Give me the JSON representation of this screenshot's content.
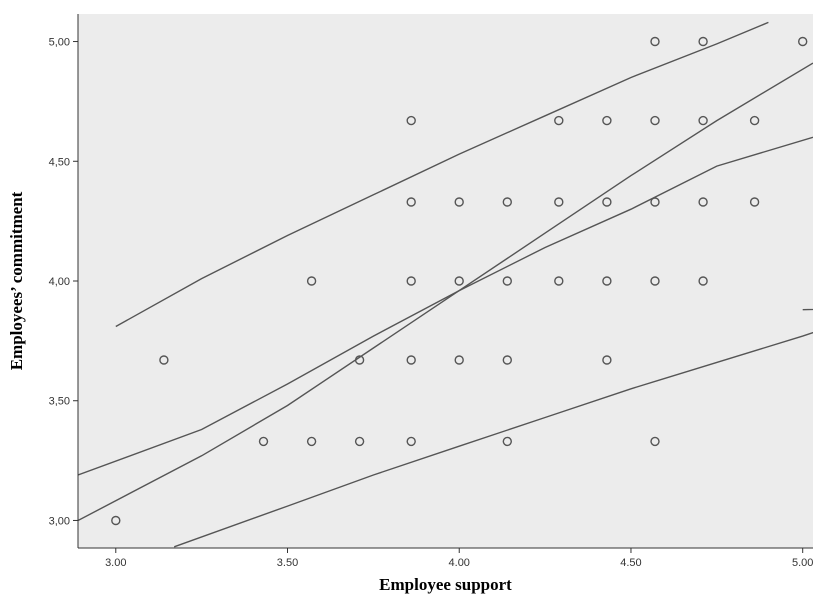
{
  "chart_data": {
    "type": "scatter",
    "xlabel": "Employee support",
    "ylabel": "Employees’ commitment",
    "xlim": [
      2.89,
      5.03
    ],
    "ylim": [
      2.885,
      5.115
    ],
    "x_ticks": [
      3.0,
      3.5,
      4.0,
      4.5,
      5.0
    ],
    "x_tick_labels": [
      "3.00",
      "3.50",
      "4.00",
      "4.50",
      "5.00"
    ],
    "y_ticks": [
      3.0,
      3.5,
      4.0,
      4.5,
      5.0
    ],
    "y_tick_labels": [
      "3,00",
      "3,50",
      "4,00",
      "4,50",
      "5,00"
    ],
    "grid": false,
    "background": "#ececec",
    "marker_color": "#555555",
    "points": [
      {
        "x": 3.0,
        "y": 3.0
      },
      {
        "x": 3.14,
        "y": 3.67
      },
      {
        "x": 3.43,
        "y": 3.33
      },
      {
        "x": 3.57,
        "y": 3.33
      },
      {
        "x": 3.57,
        "y": 4.0
      },
      {
        "x": 3.71,
        "y": 3.33
      },
      {
        "x": 3.71,
        "y": 3.67
      },
      {
        "x": 3.86,
        "y": 3.33
      },
      {
        "x": 3.86,
        "y": 3.67
      },
      {
        "x": 3.86,
        "y": 4.0
      },
      {
        "x": 3.86,
        "y": 4.33
      },
      {
        "x": 3.86,
        "y": 4.67
      },
      {
        "x": 4.0,
        "y": 3.67
      },
      {
        "x": 4.0,
        "y": 4.0
      },
      {
        "x": 4.0,
        "y": 4.33
      },
      {
        "x": 4.14,
        "y": 3.33
      },
      {
        "x": 4.14,
        "y": 3.67
      },
      {
        "x": 4.14,
        "y": 4.0
      },
      {
        "x": 4.14,
        "y": 4.33
      },
      {
        "x": 4.29,
        "y": 4.0
      },
      {
        "x": 4.29,
        "y": 4.33
      },
      {
        "x": 4.29,
        "y": 4.67
      },
      {
        "x": 4.43,
        "y": 3.67
      },
      {
        "x": 4.43,
        "y": 4.0
      },
      {
        "x": 4.43,
        "y": 4.33
      },
      {
        "x": 4.43,
        "y": 4.67
      },
      {
        "x": 4.57,
        "y": 3.33
      },
      {
        "x": 4.57,
        "y": 4.0
      },
      {
        "x": 4.57,
        "y": 4.33
      },
      {
        "x": 4.57,
        "y": 4.67
      },
      {
        "x": 4.57,
        "y": 5.0
      },
      {
        "x": 4.71,
        "y": 4.0
      },
      {
        "x": 4.71,
        "y": 4.33
      },
      {
        "x": 4.71,
        "y": 4.67
      },
      {
        "x": 4.71,
        "y": 5.0
      },
      {
        "x": 4.86,
        "y": 4.33
      },
      {
        "x": 4.86,
        "y": 4.67
      },
      {
        "x": 5.0,
        "y": 5.0
      }
    ],
    "lines": [
      {
        "points": [
          [
            3.0,
            3.81
          ],
          [
            3.25,
            4.01
          ],
          [
            3.5,
            4.19
          ],
          [
            3.75,
            4.36
          ],
          [
            4.0,
            4.53
          ],
          [
            4.25,
            4.69
          ],
          [
            4.5,
            4.85
          ],
          [
            4.75,
            4.99
          ],
          [
            4.9,
            5.08
          ]
        ]
      },
      {
        "points": [
          [
            3.17,
            2.89
          ],
          [
            3.5,
            3.06
          ],
          [
            3.75,
            3.19
          ],
          [
            4.0,
            3.31
          ],
          [
            4.25,
            3.43
          ],
          [
            4.5,
            3.55
          ],
          [
            4.75,
            3.66
          ],
          [
            5.0,
            3.77
          ],
          [
            5.25,
            3.89
          ],
          [
            5.0,
            3.88
          ]
        ]
      },
      {
        "points": [
          [
            2.89,
            3.0
          ],
          [
            3.25,
            3.27
          ],
          [
            3.5,
            3.48
          ],
          [
            3.75,
            3.72
          ],
          [
            4.0,
            3.96
          ],
          [
            4.25,
            4.2
          ],
          [
            4.5,
            4.44
          ],
          [
            4.75,
            4.67
          ],
          [
            5.03,
            4.91
          ]
        ]
      },
      {
        "points": [
          [
            2.89,
            3.19
          ],
          [
            3.25,
            3.38
          ],
          [
            3.5,
            3.57
          ],
          [
            3.75,
            3.77
          ],
          [
            4.0,
            3.96
          ],
          [
            4.25,
            4.14
          ],
          [
            4.5,
            4.3
          ],
          [
            4.75,
            4.48
          ],
          [
            5.03,
            4.6
          ]
        ]
      }
    ]
  }
}
